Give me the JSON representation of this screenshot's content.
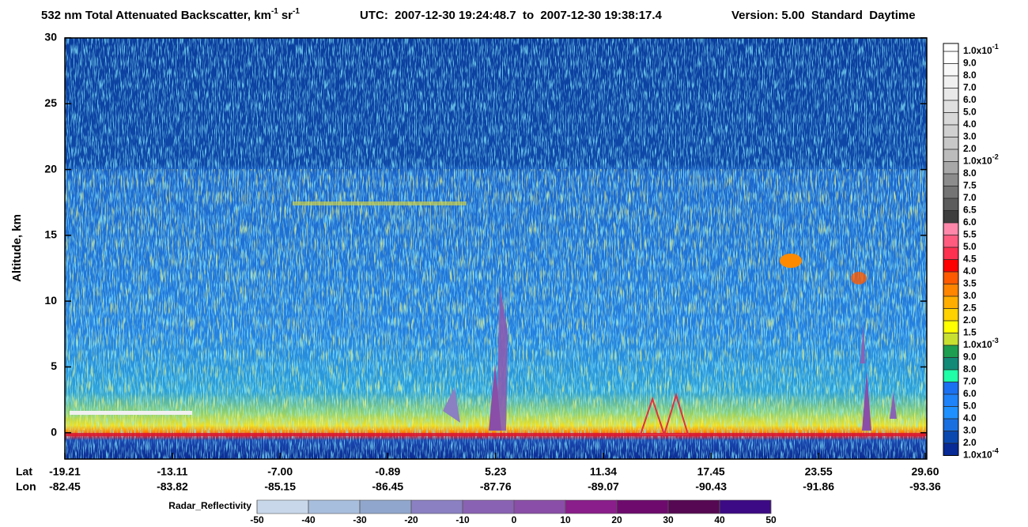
{
  "chart_data": {
    "type": "curtain",
    "title": "532 nm Total Attenuated Backscatter, km",
    "title_sup": "-1",
    "title_unit2": "sr",
    "title_sup2": "-1",
    "utc": "UTC:  2007-12-30 19:24:48.7  to  2007-12-30 19:38:17.4",
    "version": "Version: 5.00  Standard  Daytime",
    "y_label": "Altitude, km",
    "ylim": [
      -2,
      30
    ],
    "yticks": [
      0,
      5,
      10,
      15,
      20,
      25,
      30
    ],
    "lat_label": "Lat",
    "lon_label": "Lon",
    "xlim": [
      -19.21,
      29.6
    ],
    "lat_ticks": [
      -19.21,
      -13.11,
      {
        "value": -7,
        "label": "-7.00"
      },
      -0.89,
      5.23,
      11.34,
      17.45,
      23.55,
      {
        "value": 29.6,
        "label": "29.60"
      }
    ],
    "lon_ticks": [
      -82.45,
      -83.82,
      -85.15,
      -86.45,
      -87.76,
      -89.07,
      -90.43,
      -91.86,
      -93.36
    ],
    "colorbar_ticks": [
      {
        "value": 0.1,
        "label": "1.0x10",
        "sup": "-1"
      },
      {
        "value": 9,
        "label": "9.0"
      },
      {
        "value": 8,
        "label": "8.0"
      },
      {
        "value": 7,
        "label": "7.0"
      },
      {
        "value": 6,
        "label": "6.0"
      },
      {
        "value": 5,
        "label": "5.0"
      },
      {
        "value": 4,
        "label": "4.0"
      },
      {
        "value": 3,
        "label": "3.0"
      },
      {
        "value": 2,
        "label": "2.0"
      },
      {
        "value": 0.01,
        "label": "1.0x10",
        "sup": "-2"
      },
      {
        "value": 8,
        "label": "8.0"
      },
      7.5,
      {
        "value": 7,
        "label": "7.0"
      },
      6.5,
      {
        "value": 6,
        "label": "6.0"
      },
      5.5,
      {
        "value": 5,
        "label": "5.0"
      },
      4.5,
      {
        "value": 4,
        "label": "4.0"
      },
      3.5,
      {
        "value": 3,
        "label": "3.0"
      },
      2.5,
      {
        "value": 2,
        "label": "2.0"
      },
      1.5,
      {
        "value": 0.001,
        "label": "1.0x10",
        "sup": "-3"
      },
      {
        "value": 9,
        "label": "9.0"
      },
      {
        "value": 8,
        "label": "8.0"
      },
      {
        "value": 7,
        "label": "7.0"
      },
      {
        "value": 6,
        "label": "6.0"
      },
      {
        "value": 5,
        "label": "5.0"
      },
      {
        "value": 4,
        "label": "4.0"
      },
      {
        "value": 3,
        "label": "3.0"
      },
      {
        "value": 2,
        "label": "2.0"
      },
      {
        "value": 0.0001,
        "label": "1.0x10",
        "sup": "-4"
      }
    ],
    "colorbar_colors": [
      "#ffffff",
      "#f8f8f8",
      "#f0f0f0",
      "#e8e8e8",
      "#e0e0e0",
      "#d8d8d8",
      "#d0d0d0",
      "#c8c8c8",
      "#bcbcbc",
      "#a8a8a8",
      "#8c8c8c",
      "#747474",
      "#5c5c5c",
      "#3e3e3e",
      "#ff88aa",
      "#ff5c80",
      "#ff3050",
      "#ff0000",
      "#ff5a00",
      "#ff8400",
      "#ffae00",
      "#ffd200",
      "#ffff00",
      "#c8e030",
      "#1e9e50",
      "#128a78",
      "#20ffa8",
      "#1a70f0",
      "#1e82f8",
      "#1e90ff",
      "#1a6fe0",
      "#0a48b0",
      "#082a96"
    ],
    "radar_label": "Radar_Reflectivity",
    "radar_ticks": [
      -50,
      -40,
      -30,
      -20,
      -10,
      0,
      10,
      20,
      30,
      40,
      50
    ],
    "radar_colors": [
      "#c8d8ea",
      "#a8bedd",
      "#90a6cc",
      "#8a80c2",
      "#8a62b4",
      "#8a4ea8",
      "#8a1e8a",
      "#6e0a6e",
      "#560852",
      "#3c0a84"
    ]
  }
}
